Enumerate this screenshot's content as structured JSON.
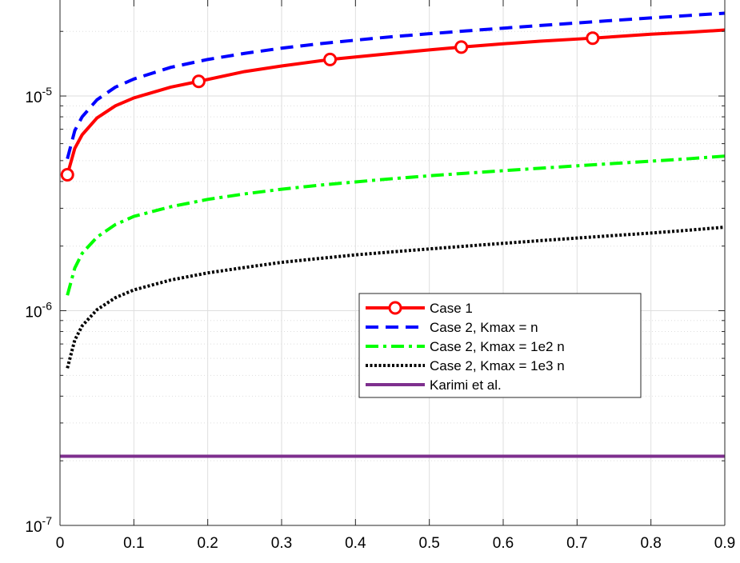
{
  "chart_data": {
    "type": "line",
    "title": "",
    "xlabel": "",
    "ylabel": "",
    "xlim": [
      0,
      0.9
    ],
    "ylim": [
      1e-07,
      2.8e-05
    ],
    "yscale": "log",
    "grid": true,
    "minor_grid": true,
    "legend_position": "center-right",
    "x_ticks": [
      {
        "value": 0,
        "label": "0"
      },
      {
        "value": 0.1,
        "label": "0.1"
      },
      {
        "value": 0.2,
        "label": "0.2"
      },
      {
        "value": 0.3,
        "label": "0.3"
      },
      {
        "value": 0.4,
        "label": "0.4"
      },
      {
        "value": 0.5,
        "label": "0.5"
      },
      {
        "value": 0.6,
        "label": "0.6"
      },
      {
        "value": 0.7,
        "label": "0.7"
      },
      {
        "value": 0.8,
        "label": "0.8"
      },
      {
        "value": 0.9,
        "label": "0.9"
      }
    ],
    "y_ticks": [
      {
        "value": 1e-07,
        "base": "10",
        "exp": "-7"
      },
      {
        "value": 1e-06,
        "base": "10",
        "exp": "-6"
      },
      {
        "value": 1e-05,
        "base": "10",
        "exp": "-5"
      }
    ],
    "series": [
      {
        "name": "Case 1",
        "color": "#ff0000",
        "style": "solid",
        "marker": "circle",
        "marker_x": [
          0.01,
          0.1878,
          0.3656,
          0.5433,
          0.7211
        ],
        "x": [
          0.01,
          0.02,
          0.03,
          0.05,
          0.075,
          0.1,
          0.15,
          0.1878,
          0.25,
          0.3,
          0.3656,
          0.4,
          0.45,
          0.5,
          0.5433,
          0.6,
          0.65,
          0.7211,
          0.8,
          0.85,
          0.9
        ],
        "y": [
          4.3e-06,
          5.7e-06,
          6.6e-06,
          7.9e-06,
          9e-06,
          9.8e-06,
          1.1e-05,
          1.17e-05,
          1.3e-05,
          1.38e-05,
          1.48e-05,
          1.52e-05,
          1.58e-05,
          1.64e-05,
          1.69e-05,
          1.75e-05,
          1.8e-05,
          1.86e-05,
          1.94e-05,
          1.98e-05,
          2.03e-05
        ]
      },
      {
        "name": "Case 2, Kmax = n",
        "color": "#0000ff",
        "style": "dashed",
        "marker": "none",
        "x": [
          0.01,
          0.02,
          0.03,
          0.05,
          0.075,
          0.1,
          0.15,
          0.2,
          0.25,
          0.3,
          0.35,
          0.4,
          0.45,
          0.5,
          0.55,
          0.6,
          0.65,
          0.7,
          0.75,
          0.8,
          0.85,
          0.9
        ],
        "y": [
          5.1e-06,
          6.9e-06,
          8e-06,
          9.6e-06,
          1.1e-05,
          1.2e-05,
          1.36e-05,
          1.48e-05,
          1.58e-05,
          1.67e-05,
          1.75e-05,
          1.82e-05,
          1.89e-05,
          1.95e-05,
          2.01e-05,
          2.07e-05,
          2.13e-05,
          2.19e-05,
          2.25e-05,
          2.31e-05,
          2.37e-05,
          2.43e-05
        ]
      },
      {
        "name": "Case 2, Kmax = 1e2 n",
        "color": "#00ff00",
        "style": "dashdot",
        "marker": "none",
        "x": [
          0.01,
          0.02,
          0.03,
          0.05,
          0.075,
          0.1,
          0.15,
          0.2,
          0.25,
          0.3,
          0.35,
          0.4,
          0.45,
          0.5,
          0.55,
          0.6,
          0.65,
          0.7,
          0.75,
          0.8,
          0.85,
          0.9
        ],
        "y": [
          1.18e-06,
          1.58e-06,
          1.85e-06,
          2.2e-06,
          2.52e-06,
          2.75e-06,
          3.05e-06,
          3.3e-06,
          3.5e-06,
          3.68e-06,
          3.84e-06,
          3.98e-06,
          4.12e-06,
          4.25e-06,
          4.37e-06,
          4.49e-06,
          4.61e-06,
          4.73e-06,
          4.85e-06,
          4.97e-06,
          5.1e-06,
          5.25e-06
        ]
      },
      {
        "name": "Case 2, Kmax = 1e3 n",
        "color": "#000000",
        "style": "dotted",
        "marker": "none",
        "x": [
          0.01,
          0.02,
          0.03,
          0.05,
          0.075,
          0.1,
          0.15,
          0.2,
          0.25,
          0.3,
          0.35,
          0.4,
          0.45,
          0.5,
          0.55,
          0.6,
          0.65,
          0.7,
          0.75,
          0.8,
          0.85,
          0.9
        ],
        "y": [
          5.4e-07,
          7.3e-07,
          8.5e-07,
          1.01e-06,
          1.15e-06,
          1.25e-06,
          1.39e-06,
          1.5e-06,
          1.59e-06,
          1.68e-06,
          1.75e-06,
          1.82e-06,
          1.88e-06,
          1.94e-06,
          2e-06,
          2.06e-06,
          2.12e-06,
          2.18e-06,
          2.24e-06,
          2.3e-06,
          2.37e-06,
          2.45e-06
        ]
      },
      {
        "name": "Karimi et al.",
        "color": "#7e2f8e",
        "style": "solid",
        "marker": "none",
        "x": [
          0.0,
          0.9
        ],
        "y": [
          2.1e-07,
          2.1e-07
        ]
      }
    ]
  }
}
